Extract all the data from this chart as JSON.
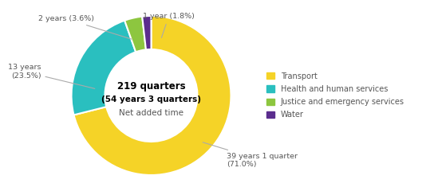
{
  "title_line1": "219 quarters",
  "title_line2": "(54 years 3 quarters)",
  "title_line3": "Net added time",
  "slices": [
    {
      "label": "Transport",
      "value": 71.0,
      "color": "#F5D327"
    },
    {
      "label": "Health and human services",
      "value": 23.5,
      "color": "#2ABFBF"
    },
    {
      "label": "Justice and emergency services",
      "value": 3.6,
      "color": "#8DC63F"
    },
    {
      "label": "Water",
      "value": 1.8,
      "color": "#5B2D8E"
    }
  ],
  "background_color": "#ffffff",
  "startangle": 90
}
